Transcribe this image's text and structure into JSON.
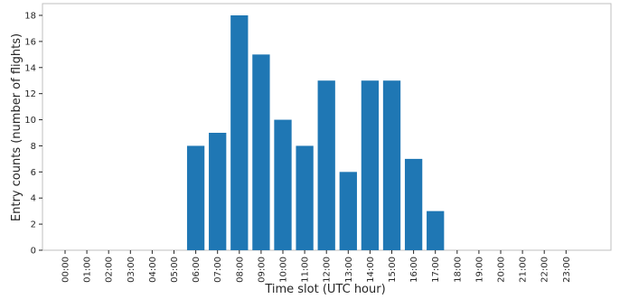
{
  "chart_data": {
    "type": "bar",
    "title": "",
    "xlabel": "Time slot (UTC hour)",
    "ylabel": "Entry counts (number of flights)",
    "categories": [
      "00:00",
      "01:00",
      "02:00",
      "03:00",
      "04:00",
      "05:00",
      "06:00",
      "07:00",
      "08:00",
      "09:00",
      "10:00",
      "11:00",
      "12:00",
      "13:00",
      "14:00",
      "15:00",
      "16:00",
      "17:00",
      "18:00",
      "19:00",
      "20:00",
      "21:00",
      "22:00",
      "23:00"
    ],
    "values": [
      0,
      0,
      0,
      0,
      0,
      0,
      8,
      9,
      18,
      15,
      10,
      8,
      13,
      6,
      13,
      13,
      7,
      3,
      0,
      0,
      0,
      0,
      0,
      0
    ],
    "ylim": [
      0,
      18.9
    ],
    "yticks": [
      0,
      2,
      4,
      6,
      8,
      10,
      12,
      14,
      16,
      18
    ],
    "grid": false,
    "bar_color": "#1f77b4",
    "colors": {
      "axis": "#262626",
      "frame": "#bfbfbf"
    }
  }
}
